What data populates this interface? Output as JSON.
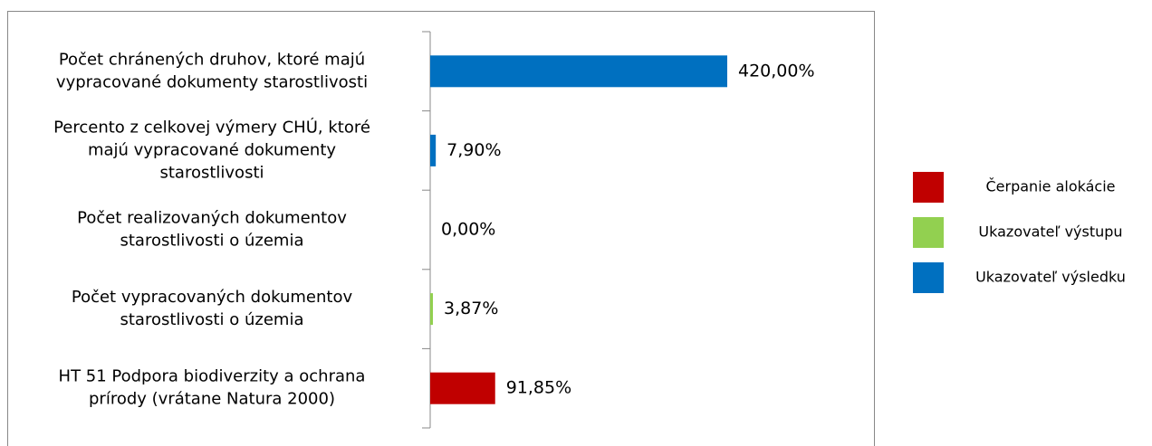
{
  "chart_data": {
    "type": "bar",
    "orientation": "horizontal",
    "categories": [
      [
        "Počet chránených druhov, ktoré majú",
        "vypracované dokumenty starostlivosti"
      ],
      [
        "Percento z celkovej výmery CHÚ, ktoré",
        "majú vypracované dokumenty",
        "starostlivosti"
      ],
      [
        "Počet realizovaných dokumentov",
        "starostlivosti o územia"
      ],
      [
        "Počet vypracovaných dokumentov",
        "starostlivosti o územia"
      ],
      [
        "HT 51  Podpora biodiverzity a ochrana",
        "prírody (vrátane Natura 2000)"
      ]
    ],
    "series": [
      {
        "name": "Čerpanie alokácie",
        "color": "#c00000",
        "values": [
          null,
          null,
          null,
          null,
          91.85
        ],
        "value_labels": [
          null,
          null,
          null,
          null,
          "91,85%"
        ]
      },
      {
        "name": "Ukazovateľ výstupu",
        "color": "#92d050",
        "values": [
          null,
          null,
          0,
          3.87,
          null
        ],
        "value_labels": [
          null,
          null,
          "0,00%",
          "3,87%",
          null
        ]
      },
      {
        "name": "Ukazovateľ výsledku",
        "color": "#0070c0",
        "values": [
          420,
          7.9,
          null,
          null,
          null
        ],
        "value_labels": [
          "420,00%",
          "7,90%",
          null,
          null,
          null
        ]
      }
    ],
    "legend": "right"
  }
}
